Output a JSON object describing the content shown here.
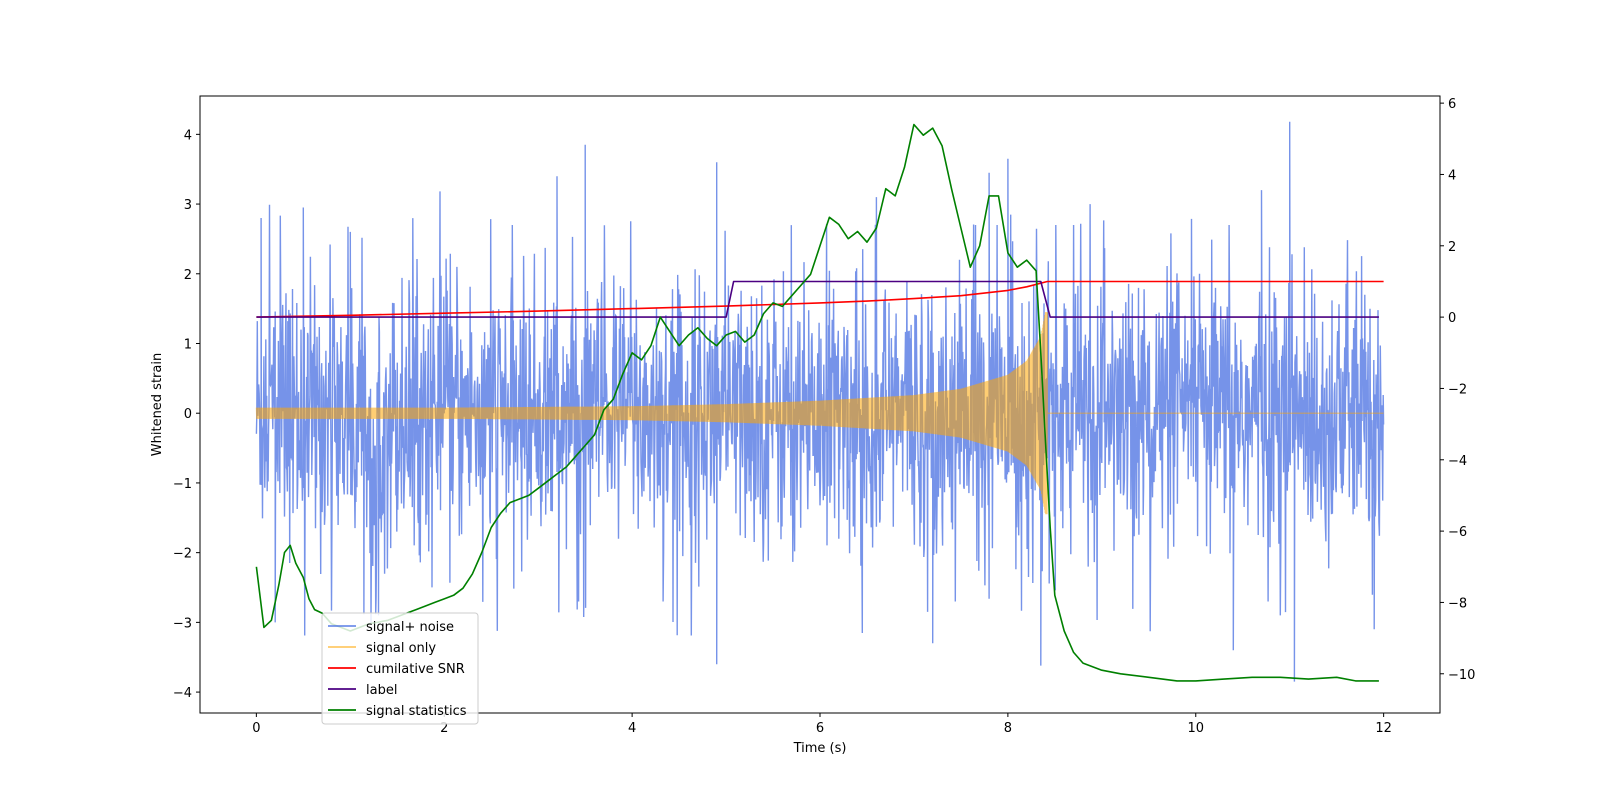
{
  "chart_data": {
    "type": "line",
    "title": "",
    "xlabel": "Time (s)",
    "ylabel": "Whitened strain",
    "y2label": "",
    "xlim": [
      -0.6,
      12.6
    ],
    "ylim": [
      -4.3,
      4.55
    ],
    "y2lim": [
      -11.1,
      6.2
    ],
    "xticks": [
      "0",
      "2",
      "4",
      "6",
      "8",
      "10",
      "12"
    ],
    "xtick_values": [
      0,
      2,
      4,
      6,
      8,
      10,
      12
    ],
    "yticks": [
      "−4",
      "−3",
      "−2",
      "−1",
      "0",
      "1",
      "2",
      "3",
      "4"
    ],
    "ytick_values": [
      -4,
      -3,
      -2,
      -1,
      0,
      1,
      2,
      3,
      4
    ],
    "y2ticks": [
      "−10",
      "−8",
      "−6",
      "−4",
      "−2",
      "0",
      "2",
      "4",
      "6"
    ],
    "y2tick_values": [
      -10,
      -8,
      -6,
      -4,
      -2,
      0,
      2,
      4,
      6
    ],
    "legend_position": "lower-left",
    "colors": {
      "noise": "#4169e1",
      "signal": "#ffa500",
      "snr": "#ff0000",
      "label": "#4b0082",
      "stat": "#008000"
    },
    "series": [
      {
        "name": "signal+ noise",
        "axis": "left",
        "description": "dense noisy strain, roughly -2.5..2.5 with spikes to ±4, from t=0 to t=12",
        "x_range": [
          0,
          12
        ],
        "spikes": [
          {
            "x": 0.05,
            "y": 2.8
          },
          {
            "x": 0.5,
            "y": 2.95
          },
          {
            "x": 1.0,
            "y": 2.6
          },
          {
            "x": 3.2,
            "y": 3.4
          },
          {
            "x": 3.5,
            "y": 3.85
          },
          {
            "x": 4.9,
            "y": 3.6
          },
          {
            "x": 6.6,
            "y": 3.1
          },
          {
            "x": 7.8,
            "y": 3.45
          },
          {
            "x": 8.0,
            "y": 3.65
          },
          {
            "x": 11.0,
            "y": 4.18
          },
          {
            "x": 10.7,
            "y": 3.2
          },
          {
            "x": 0.2,
            "y": -3.0
          },
          {
            "x": 1.3,
            "y": -2.9
          },
          {
            "x": 4.9,
            "y": -3.6
          },
          {
            "x": 7.2,
            "y": -3.3
          },
          {
            "x": 8.35,
            "y": -3.62
          },
          {
            "x": 10.4,
            "y": -3.4
          },
          {
            "x": 11.05,
            "y": -3.85
          },
          {
            "x": 11.9,
            "y": -3.1
          }
        ]
      },
      {
        "name": "signal only",
        "axis": "left",
        "description": "chirp envelope growing from ~0.08 at t=0 to ~1.45 at t=8.4, zero afterwards",
        "envelope": {
          "x": [
            0,
            2,
            4,
            5,
            6,
            7,
            7.5,
            8,
            8.2,
            8.35,
            8.4
          ],
          "y": [
            0.08,
            0.08,
            0.1,
            0.13,
            0.18,
            0.26,
            0.35,
            0.55,
            0.75,
            1.1,
            1.45
          ]
        },
        "end_x": 8.42,
        "after_value": 0
      },
      {
        "name": "cumilative SNR",
        "axis": "right",
        "x": [
          0,
          1,
          2,
          3,
          4,
          5,
          6,
          6.5,
          7,
          7.5,
          8,
          8.2,
          8.42,
          8.42,
          12
        ],
        "y": [
          0,
          0.05,
          0.11,
          0.17,
          0.24,
          0.31,
          0.4,
          0.45,
          0.52,
          0.6,
          0.75,
          0.85,
          1.0,
          1.0,
          1.0
        ]
      },
      {
        "name": "label",
        "axis": "right",
        "x": [
          0,
          5.0,
          5.08,
          8.35,
          8.45,
          11.95
        ],
        "y": [
          0,
          0,
          1,
          1,
          0,
          0
        ]
      },
      {
        "name": "signal statistics",
        "axis": "right",
        "x": [
          0,
          0.08,
          0.16,
          0.24,
          0.3,
          0.36,
          0.42,
          0.5,
          0.56,
          0.62,
          0.7,
          0.8,
          0.9,
          1.0,
          1.1,
          1.2,
          1.3,
          1.4,
          1.5,
          1.6,
          1.7,
          1.8,
          1.9,
          2.0,
          2.1,
          2.2,
          2.3,
          2.4,
          2.5,
          2.6,
          2.7,
          2.8,
          2.9,
          3.0,
          3.1,
          3.2,
          3.3,
          3.4,
          3.5,
          3.6,
          3.7,
          3.8,
          3.9,
          4.0,
          4.1,
          4.2,
          4.3,
          4.4,
          4.5,
          4.6,
          4.7,
          4.8,
          4.9,
          5.0,
          5.1,
          5.2,
          5.3,
          5.4,
          5.5,
          5.6,
          5.7,
          5.8,
          5.9,
          6.0,
          6.1,
          6.2,
          6.3,
          6.4,
          6.5,
          6.6,
          6.7,
          6.8,
          6.9,
          7.0,
          7.1,
          7.2,
          7.3,
          7.4,
          7.5,
          7.6,
          7.7,
          7.8,
          7.9,
          8.0,
          8.1,
          8.2,
          8.3,
          8.35,
          8.4,
          8.45,
          8.5,
          8.6,
          8.7,
          8.8,
          9.0,
          9.2,
          9.5,
          9.8,
          10.0,
          10.3,
          10.6,
          10.9,
          11.2,
          11.5,
          11.7,
          11.95
        ],
        "y": [
          -7.0,
          -8.7,
          -8.5,
          -7.5,
          -6.6,
          -6.4,
          -6.9,
          -7.3,
          -7.9,
          -8.2,
          -8.3,
          -8.6,
          -8.7,
          -8.8,
          -8.7,
          -8.6,
          -8.55,
          -8.5,
          -8.4,
          -8.3,
          -8.2,
          -8.1,
          -8.0,
          -7.9,
          -7.8,
          -7.6,
          -7.2,
          -6.6,
          -5.9,
          -5.5,
          -5.2,
          -5.1,
          -5.0,
          -4.8,
          -4.6,
          -4.4,
          -4.2,
          -3.9,
          -3.6,
          -3.3,
          -2.6,
          -2.3,
          -1.6,
          -1.0,
          -1.2,
          -0.8,
          0.0,
          -0.4,
          -0.8,
          -0.5,
          -0.3,
          -0.6,
          -0.8,
          -0.5,
          -0.4,
          -0.7,
          -0.5,
          0.1,
          0.4,
          0.3,
          0.6,
          0.9,
          1.2,
          2.0,
          2.8,
          2.6,
          2.2,
          2.4,
          2.1,
          2.5,
          3.6,
          3.4,
          4.2,
          5.4,
          5.1,
          5.3,
          4.8,
          3.6,
          2.5,
          1.4,
          2.0,
          3.4,
          3.4,
          1.8,
          1.4,
          1.6,
          1.3,
          -1.0,
          -3.5,
          -5.9,
          -7.8,
          -8.8,
          -9.4,
          -9.7,
          -9.9,
          -10.0,
          -10.1,
          -10.2,
          -10.2,
          -10.15,
          -10.1,
          -10.1,
          -10.15,
          -10.1,
          -10.2,
          -10.2
        ]
      }
    ]
  }
}
